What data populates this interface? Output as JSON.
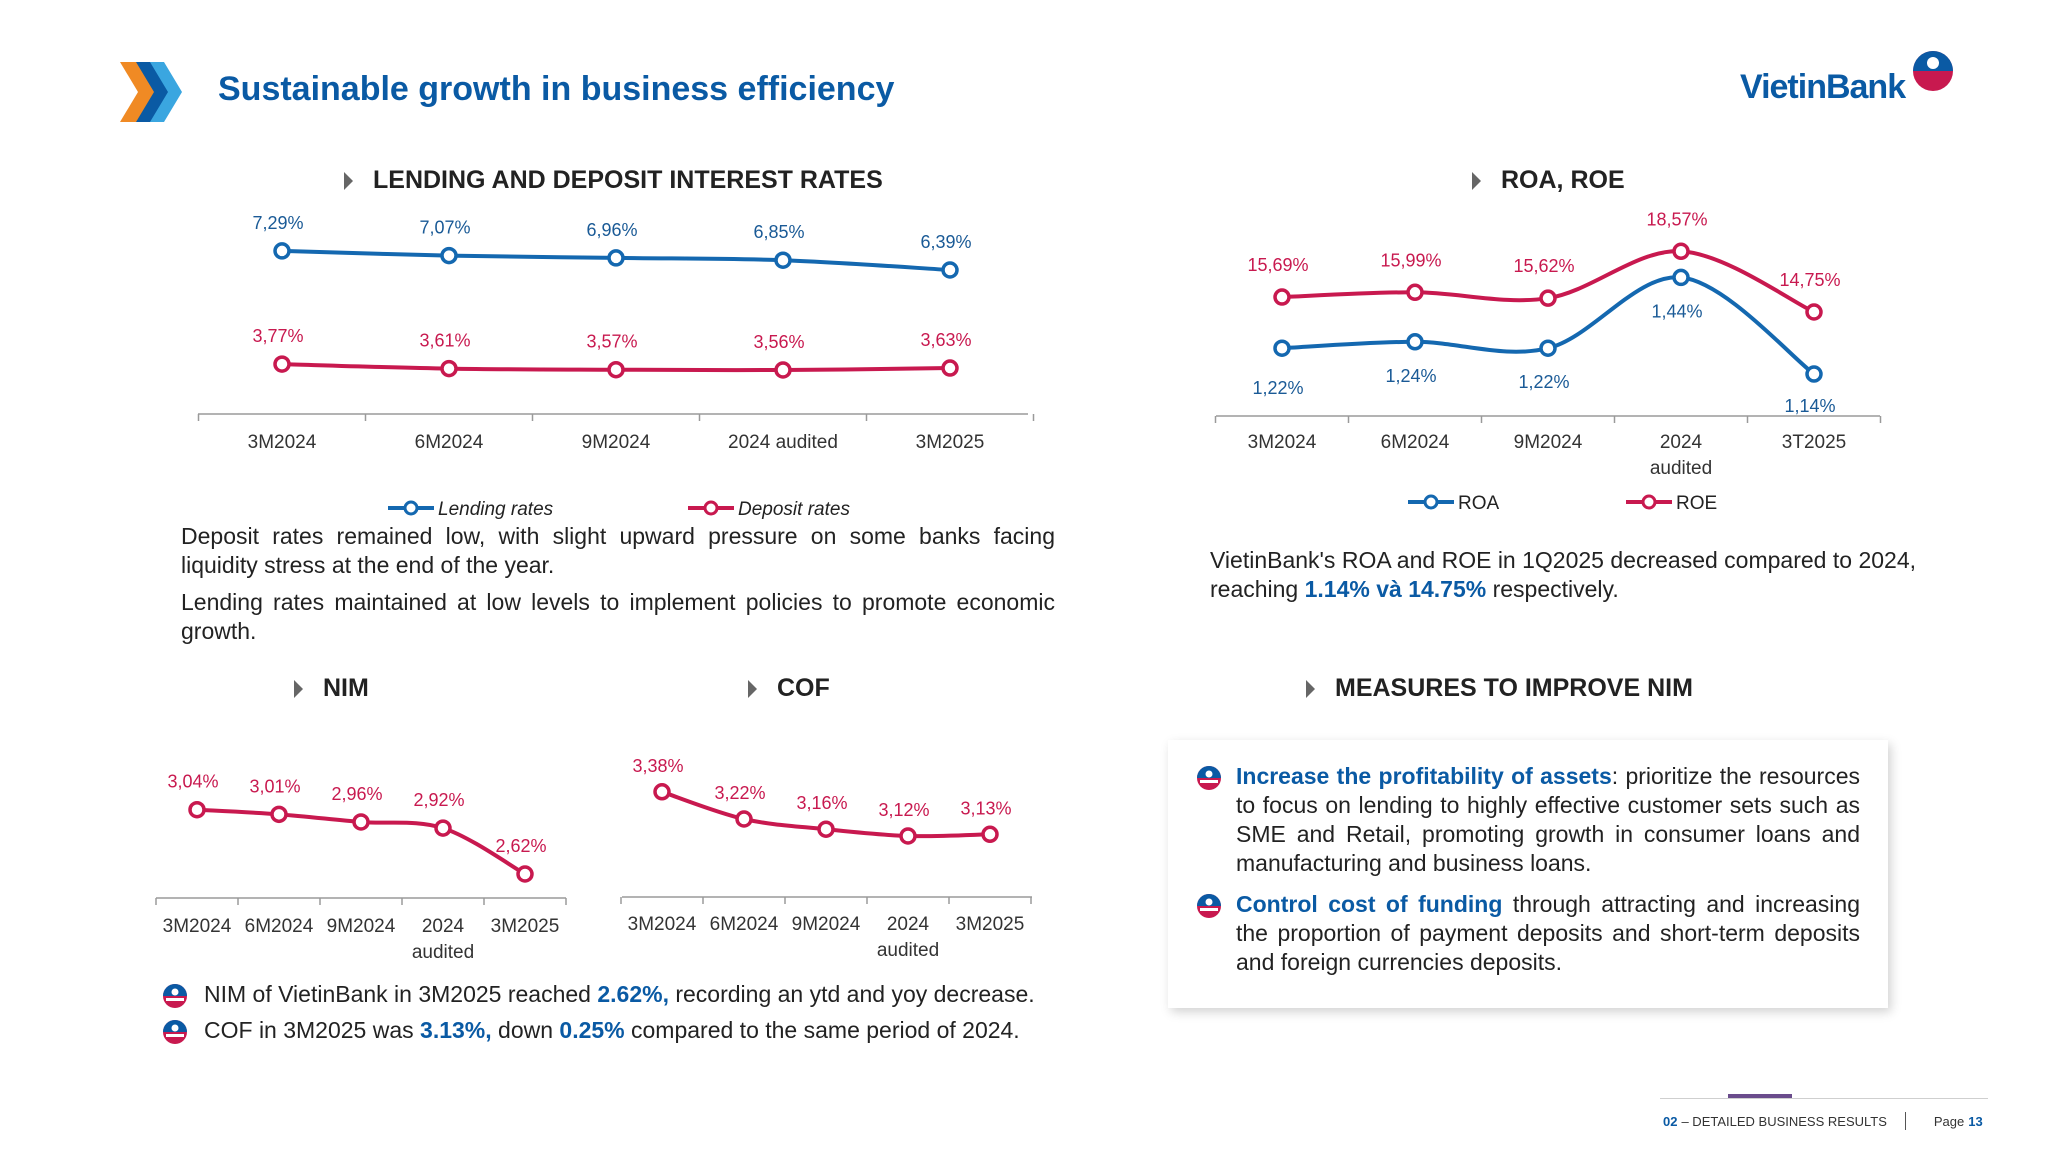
{
  "header": {
    "title": "Sustainable growth in business efficiency",
    "brand": "VietinBank",
    "colors": {
      "primary_blue": "#0a5aa4",
      "accent_red": "#c8194f",
      "line_blue": "#1468b0"
    }
  },
  "sections": {
    "rates_title": "LENDING AND DEPOSIT INTEREST RATES",
    "roa_title": "ROA, ROE",
    "nim_title": "NIM",
    "cof_title": "COF",
    "measures_title": "MEASURES TO IMPROVE NIM"
  },
  "chart_data": [
    {
      "id": "rates",
      "type": "line",
      "categories": [
        "3M2024",
        "6M2024",
        "9M2024",
        "2024 audited",
        "3M2025"
      ],
      "series": [
        {
          "name": "Lending rates",
          "values": [
            7.29,
            7.07,
            6.96,
            6.85,
            6.39
          ],
          "labels": [
            "7,29%",
            "7,07%",
            "6,96%",
            "6,85%",
            "6,39%"
          ],
          "color": "#1468b0"
        },
        {
          "name": "Deposit rates",
          "values": [
            3.77,
            3.61,
            3.57,
            3.56,
            3.63
          ],
          "labels": [
            "3,77%",
            "3,61%",
            "3,57%",
            "3,56%",
            "3,63%"
          ],
          "color": "#c8194f"
        }
      ],
      "legend": "bottom"
    },
    {
      "id": "roa_roe",
      "type": "line",
      "categories": [
        "3M2024",
        "6M2024",
        "9M2024",
        "2024 audited",
        "3T2025"
      ],
      "series": [
        {
          "name": "ROA",
          "values": [
            1.22,
            1.24,
            1.22,
            1.44,
            1.14
          ],
          "labels": [
            "1,22%",
            "1,24%",
            "1,22%",
            "1,44%",
            "1,14%"
          ],
          "color": "#1468b0"
        },
        {
          "name": "ROE",
          "values": [
            15.69,
            15.99,
            15.62,
            18.57,
            14.75
          ],
          "labels": [
            "15,69%",
            "15,99%",
            "15,62%",
            "18,57%",
            "14,75%"
          ],
          "color": "#c8194f"
        }
      ],
      "legend": "bottom"
    },
    {
      "id": "nim",
      "type": "line",
      "categories": [
        "3M2024",
        "6M2024",
        "9M2024",
        "2024 audited",
        "3M2025"
      ],
      "series": [
        {
          "name": "NIM",
          "values": [
            3.04,
            3.01,
            2.96,
            2.92,
            2.62
          ],
          "labels": [
            "3,04%",
            "3,01%",
            "2,96%",
            "2,92%",
            "2,62%"
          ],
          "color": "#c8194f"
        }
      ]
    },
    {
      "id": "cof",
      "type": "line",
      "categories": [
        "3M2024",
        "6M2024",
        "9M2024",
        "2024 audited",
        "3M2025"
      ],
      "series": [
        {
          "name": "COF",
          "values": [
            3.38,
            3.22,
            3.16,
            3.12,
            3.13
          ],
          "labels": [
            "3,38%",
            "3,22%",
            "3,16%",
            "3,12%",
            "3,13%"
          ],
          "color": "#c8194f"
        }
      ]
    }
  ],
  "text": {
    "rates_p1": "Deposit rates remained low, with slight upward pressure on some banks facing liquidity stress at the end of the year.",
    "rates_p2": "Lending rates maintained at low levels to implement policies to promote economic growth.",
    "roa_p1": "VietinBank's ROA and ROE in 1Q2025 decreased compared to 2024, reaching",
    "roa_p1_bold": "1.14% và 14.75%",
    "roa_p1_end": "respectively.",
    "nim_b1_a": "NIM of VietinBank in 3M2025 reached",
    "nim_b1_bold": "2.62%,",
    "nim_b1_b": "recording an ytd and yoy decrease.",
    "nim_b2_a": "COF in 3M2025 was",
    "nim_b2_bold1": "3.13%,",
    "nim_b2_b": "down",
    "nim_b2_bold2": "0.25%",
    "nim_b2_c": "compared to the same period of 2024.",
    "m1_bold": "Increase the profitability of assets",
    "m1_text": ": prioritize the resources to focus on lending to highly effective customer sets such as SME and Retail, promoting growth in consumer loans and manufacturing and business loans.",
    "m2_bold": "Control cost of funding",
    "m2_text": " through attracting and increasing the proportion of payment deposits and short-term deposits and foreign currencies deposits."
  },
  "footer": {
    "section": "02",
    "section_label": "– DETAILED BUSINESS RESULTS",
    "page_label": "Page",
    "page_number": "13"
  }
}
